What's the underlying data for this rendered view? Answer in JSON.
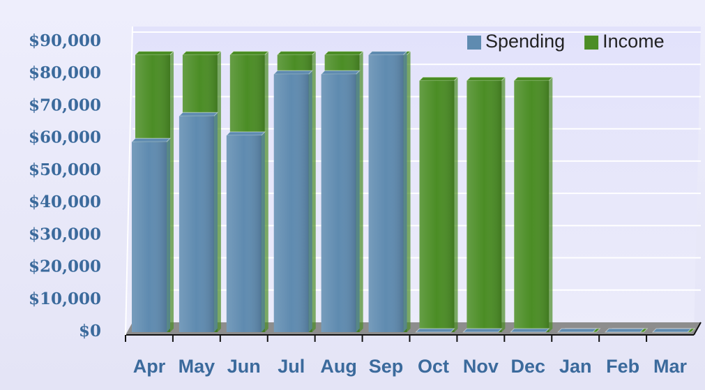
{
  "chart_data": {
    "type": "bar",
    "categories": [
      "Apr",
      "May",
      "Jun",
      "Jul",
      "Aug",
      "Sep",
      "Oct",
      "Nov",
      "Dec",
      "Jan",
      "Feb",
      "Mar"
    ],
    "series": [
      {
        "name": "Spending",
        "color": "#5f8bb0",
        "values": [
          59000,
          67000,
          61000,
          80000,
          80000,
          86000,
          0,
          0,
          0,
          0,
          0,
          0
        ]
      },
      {
        "name": "Income",
        "color": "#4b8d25",
        "values": [
          86000,
          86000,
          86000,
          86000,
          86000,
          86000,
          78000,
          78000,
          78000,
          0,
          0,
          0
        ]
      }
    ],
    "ylim": [
      0,
      90000
    ],
    "yticks": [
      {
        "value": 0,
        "label": "$0"
      },
      {
        "value": 10000,
        "label": "$10,000"
      },
      {
        "value": 20000,
        "label": "$20,000"
      },
      {
        "value": 30000,
        "label": "$30,000"
      },
      {
        "value": 40000,
        "label": "$40,000"
      },
      {
        "value": 50000,
        "label": "$50,000"
      },
      {
        "value": 60000,
        "label": "$60,000"
      },
      {
        "value": 70000,
        "label": "$70,000"
      },
      {
        "value": 80000,
        "label": "$80,000"
      },
      {
        "value": 90000,
        "label": "$90,000"
      }
    ],
    "grid": true,
    "legend": "top-right"
  }
}
